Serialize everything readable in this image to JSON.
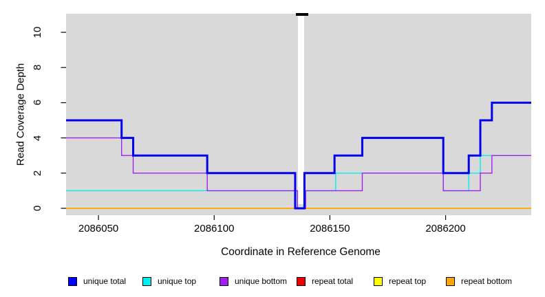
{
  "figure": {
    "x_axis": {
      "label": "Coordinate in Reference Genome"
    },
    "y_axis": {
      "label": "Read Coverage Depth"
    },
    "panel_background": "#d9d9d9",
    "gap_marker": "white break band with black top bar"
  },
  "legend": {
    "items": [
      {
        "label": "unique total",
        "color": "#0000FF"
      },
      {
        "label": "unique top",
        "color": "#00EEEE"
      },
      {
        "label": "unique bottom",
        "color": "#A020F0"
      },
      {
        "label": "repeat total",
        "color": "#EE0000"
      },
      {
        "label": "repeat top",
        "color": "#FFFF00"
      },
      {
        "label": "repeat bottom",
        "color": "#FFA500"
      }
    ]
  },
  "chart_data": {
    "type": "line",
    "step": true,
    "title": "",
    "xlabel": "Coordinate in Reference Genome",
    "ylabel": "Read Coverage Depth",
    "xlim": [
      2086036,
      2086237
    ],
    "ylim": [
      0,
      11
    ],
    "x_ticks": [
      2086050,
      2086100,
      2086150,
      2086200
    ],
    "y_ticks": [
      0,
      2,
      4,
      6,
      8,
      10
    ],
    "grid": false,
    "legend_position": "bottom",
    "gap": {
      "from": 2086136.3,
      "to": 2086138.8
    },
    "series": [
      {
        "name": "unique total",
        "color": "#0000EE",
        "width": 3,
        "points": [
          [
            2086036,
            5
          ],
          [
            2086060,
            4
          ],
          [
            2086065,
            3
          ],
          [
            2086097,
            2
          ],
          [
            2086135,
            0
          ],
          [
            2086139,
            2
          ],
          [
            2086152,
            3
          ],
          [
            2086164,
            4
          ],
          [
            2086199,
            2
          ],
          [
            2086210,
            3
          ],
          [
            2086215,
            5
          ],
          [
            2086220,
            6
          ]
        ]
      },
      {
        "name": "unique top",
        "color": "#00EEEE",
        "width": 1.4,
        "points": [
          [
            2086036,
            1
          ],
          [
            2086136,
            0
          ],
          [
            2086139.5,
            1
          ],
          [
            2086152.5,
            2
          ],
          [
            2086199,
            1
          ],
          [
            2086210,
            2
          ],
          [
            2086215,
            3
          ]
        ]
      },
      {
        "name": "unique bottom",
        "color": "#A020F0",
        "width": 1.4,
        "points": [
          [
            2086036,
            4
          ],
          [
            2086060,
            3
          ],
          [
            2086065,
            2
          ],
          [
            2086097,
            1
          ],
          [
            2086136,
            0
          ],
          [
            2086139.5,
            1
          ],
          [
            2086164,
            2
          ],
          [
            2086199,
            1
          ],
          [
            2086215,
            2
          ],
          [
            2086220,
            3
          ]
        ]
      },
      {
        "name": "repeat total",
        "color": "#EE0000",
        "width": 1.4,
        "points": [
          [
            2086036,
            0
          ]
        ]
      },
      {
        "name": "repeat top",
        "color": "#FFFF00",
        "width": 1.4,
        "points": [
          [
            2086036,
            0
          ]
        ]
      },
      {
        "name": "repeat bottom",
        "color": "#FFA500",
        "width": 1.4,
        "points": [
          [
            2086036,
            0
          ]
        ]
      }
    ],
    "draw_order": [
      3,
      4,
      5,
      1,
      2,
      0
    ]
  }
}
